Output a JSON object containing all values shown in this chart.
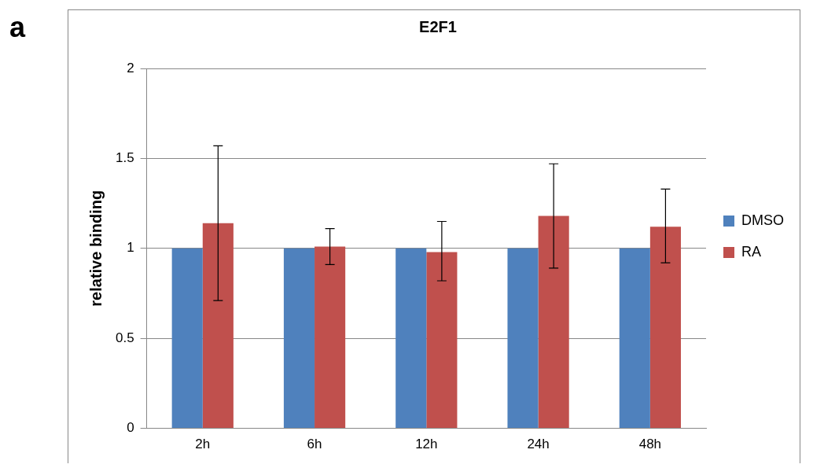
{
  "chart_data": {
    "type": "bar",
    "title": "E2F1",
    "ylabel": "relative binding",
    "annotations": [
      "a"
    ],
    "categories": [
      "2h",
      "6h",
      "12h",
      "24h",
      "48h"
    ],
    "series": [
      {
        "name": "DMSO",
        "color": "#4f81bd",
        "values": [
          1,
          1,
          1,
          1,
          1
        ]
      },
      {
        "name": "RA",
        "color": "#c0504d",
        "values": [
          1.14,
          1.01,
          0.98,
          1.18,
          1.12
        ],
        "errors": [
          [
            0.71,
            1.57
          ],
          [
            0.91,
            1.11
          ],
          [
            0.82,
            1.15
          ],
          [
            0.89,
            1.47
          ],
          [
            0.92,
            1.33
          ]
        ]
      }
    ],
    "ylim": [
      0,
      2
    ],
    "yticks": [
      0,
      0.5,
      1,
      1.5,
      2
    ],
    "grid": "y",
    "legend": "right"
  }
}
